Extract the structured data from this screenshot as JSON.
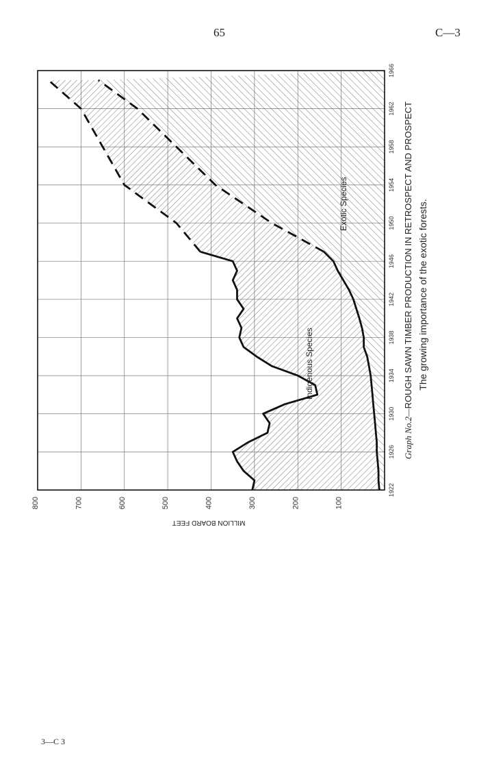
{
  "page": {
    "number": "65",
    "reference": "C—3",
    "footer": "3—C 3"
  },
  "chart_data": {
    "type": "area",
    "title": "Graph No.2—ROUGH SAWN TIMBER PRODUCTION IN RETROSPECT AND PROSPECT",
    "title_prefix": "Graph No.2—",
    "title_main": "ROUGH SAWN TIMBER PRODUCTION IN RETROSPECT AND PROSPECT",
    "subtitle": "The growing importance of the exotic forests.",
    "xlabel": "",
    "ylabel": "MILLION BOARD FEET",
    "x_ticks": [
      1922,
      1926,
      1930,
      1934,
      1938,
      1942,
      1946,
      1950,
      1954,
      1958,
      1962,
      1966
    ],
    "y_ticks": [
      100,
      200,
      300,
      400,
      500,
      600,
      700,
      800
    ],
    "xlim": [
      1922,
      1966
    ],
    "ylim": [
      0,
      800
    ],
    "grid": true,
    "orientation": "rotated 90 degrees counter-clockwise",
    "series": [
      {
        "name": "Exotic Species",
        "style": "solid to 1947, dashed projection after",
        "x": [
          1922,
          1923,
          1924,
          1925,
          1926,
          1927,
          1928,
          1929,
          1930,
          1931,
          1932,
          1933,
          1934,
          1935,
          1936,
          1937,
          1938,
          1939,
          1940,
          1941,
          1942,
          1943,
          1944,
          1945,
          1946,
          1947,
          1950,
          1954,
          1958,
          1962,
          1965
        ],
        "values": [
          12,
          14,
          14,
          16,
          18,
          18,
          20,
          22,
          24,
          26,
          28,
          30,
          32,
          36,
          40,
          48,
          48,
          52,
          58,
          65,
          72,
          82,
          95,
          108,
          118,
          140,
          260,
          390,
          480,
          570,
          660
        ]
      },
      {
        "name": "Indigenous Species",
        "style": "total production, solid to 1947, dashed projection after",
        "x": [
          1922,
          1923,
          1924,
          1925,
          1926,
          1927,
          1928,
          1929,
          1930,
          1931,
          1932,
          1933,
          1934,
          1935,
          1936,
          1937,
          1938,
          1939,
          1940,
          1941,
          1942,
          1943,
          1944,
          1945,
          1946,
          1947,
          1950,
          1954,
          1958,
          1962,
          1965
        ],
        "values": [
          305,
          300,
          325,
          340,
          350,
          315,
          270,
          265,
          280,
          230,
          155,
          160,
          200,
          260,
          295,
          325,
          335,
          330,
          340,
          325,
          340,
          340,
          350,
          340,
          350,
          425,
          480,
          600,
          650,
          700,
          775
        ]
      }
    ]
  }
}
